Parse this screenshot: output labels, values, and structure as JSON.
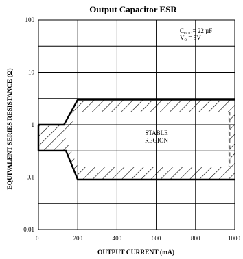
{
  "chart_data": {
    "type": "area",
    "title": "Output Capacitor ESR",
    "xlabel": "OUTPUT CURRENT (mA)",
    "ylabel": "EQUIVALENT SERIES RESISTANCE (Ω)",
    "x_scale": "linear",
    "y_scale": "log",
    "xlim": [
      0,
      1000
    ],
    "ylim": [
      0.01,
      100
    ],
    "x_ticks": [
      "0",
      "200",
      "400",
      "600",
      "800",
      "1000"
    ],
    "y_ticks": [
      "0.01",
      "0.1",
      "1",
      "10",
      "100"
    ],
    "grid": true,
    "conditions": {
      "cout_prefix": "C",
      "cout_sub": "OUT",
      "cout_value": " = 22 µF",
      "vo_prefix": "V",
      "vo_sub": "O",
      "vo_value": " = 5V"
    },
    "region_label": [
      "STABLE",
      "REGION"
    ],
    "series": [
      {
        "role": "upper_boundary",
        "x": [
          0,
          130,
          200,
          1000
        ],
        "y": [
          1.0,
          1.0,
          3.0,
          3.0
        ]
      },
      {
        "role": "lower_boundary",
        "x": [
          0,
          140,
          200,
          1000
        ],
        "y": [
          0.32,
          0.32,
          0.09,
          0.09
        ]
      }
    ]
  }
}
